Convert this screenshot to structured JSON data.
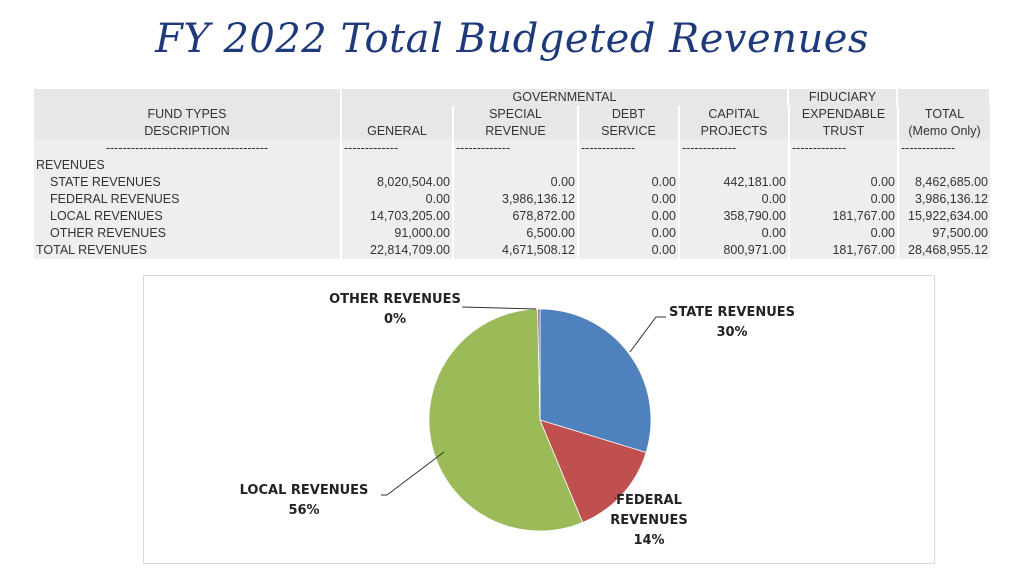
{
  "title": "FY 2022 Total Budgeted Revenues",
  "table": {
    "group_governmental": "GOVERNMENTAL",
    "group_fiduciary": "FIDUCIARY",
    "header_row2": [
      "FUND TYPES",
      "",
      "SPECIAL",
      "DEBT",
      "CAPITAL",
      "EXPENDABLE",
      "TOTAL"
    ],
    "header_row3": [
      "DESCRIPTION",
      "GENERAL",
      "REVENUE",
      "SERVICE",
      "PROJECTS",
      "TRUST",
      "(Memo Only)"
    ],
    "dash_row": [
      "---------------------------------------",
      "-------------",
      "-------------",
      "-------------",
      "-------------",
      "-------------",
      "-------------"
    ],
    "section_label": "REVENUES",
    "rows": [
      {
        "label": "STATE REVENUES",
        "values": [
          "8,020,504.00",
          "0.00",
          "0.00",
          "442,181.00",
          "0.00",
          "8,462,685.00"
        ]
      },
      {
        "label": "FEDERAL REVENUES",
        "values": [
          "0.00",
          "3,986,136.12",
          "0.00",
          "0.00",
          "0.00",
          "3,986,136.12"
        ]
      },
      {
        "label": "LOCAL REVENUES",
        "values": [
          "14,703,205.00",
          "678,872.00",
          "0.00",
          "358,790.00",
          "181,767.00",
          "15,922,634.00"
        ]
      },
      {
        "label": "OTHER REVENUES",
        "values": [
          "91,000.00",
          "6,500.00",
          "0.00",
          "0.00",
          "0.00",
          "97,500.00"
        ]
      }
    ],
    "total_row": {
      "label": "TOTAL REVENUES",
      "values": [
        "22,814,709.00",
        "4,671,508.12",
        "0.00",
        "800,971.00",
        "181,767.00",
        "28,468,955.12"
      ]
    }
  },
  "chart_data": {
    "type": "pie",
    "slices": [
      {
        "label": "STATE REVENUES",
        "value": 8462685.0,
        "pct_label": "30%",
        "color": "#4f81bd"
      },
      {
        "label": "FEDERAL REVENUES",
        "value": 3986136.12,
        "pct_label": "14%",
        "color": "#c0504d"
      },
      {
        "label": "LOCAL REVENUES",
        "value": 15922634.0,
        "pct_label": "56%",
        "color": "#9bbb59"
      },
      {
        "label": "OTHER REVENUES",
        "value": 97500.0,
        "pct_label": "0%",
        "color": "#8064a2"
      }
    ],
    "federal_label_lines": [
      "FEDERAL",
      "REVENUES"
    ],
    "legend": "none"
  }
}
